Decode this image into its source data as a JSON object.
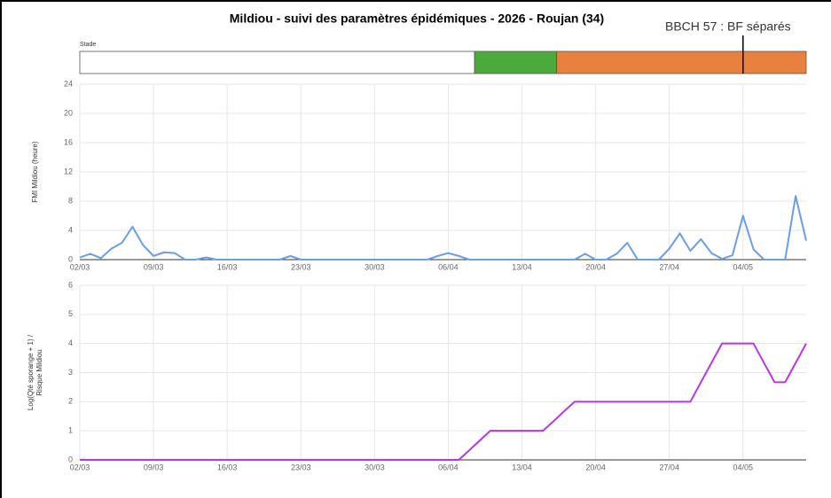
{
  "chart_data": [
    {
      "type": "stage",
      "title": "Mildiou - suivi des paramètres épidémiques - 2026 - Roujan (34)",
      "label": "Stade",
      "xlim": [
        0,
        69
      ],
      "values": [
        37.5,
        7.8,
        23.7
      ],
      "colors": [
        "#ffffff",
        "#4caa3c",
        "#e8803e"
      ],
      "marker": 63,
      "annotation": "BBCH 57 : BF séparés"
    },
    {
      "type": "line",
      "ylabel": "FMI Mildiou (heure)",
      "categories": [
        "02/03",
        null,
        null,
        null,
        null,
        null,
        null,
        "09/03",
        null,
        null,
        null,
        null,
        null,
        null,
        "16/03",
        null,
        null,
        null,
        null,
        null,
        null,
        "23/03",
        null,
        null,
        null,
        null,
        null,
        null,
        "30/03",
        null,
        null,
        null,
        null,
        null,
        null,
        "06/04",
        null,
        null,
        null,
        null,
        null,
        null,
        "13/04",
        null,
        null,
        null,
        null,
        null,
        null,
        "20/04",
        null,
        null,
        null,
        null,
        null,
        null,
        "27/04",
        null,
        null,
        null,
        null,
        null,
        null,
        "04/05",
        null,
        null,
        null,
        null,
        null,
        null
      ],
      "series": [
        {
          "color": "#6a9ee8",
          "values": [
            0.3,
            0.8,
            0.2,
            1.5,
            2.3,
            4.5,
            2,
            0.5,
            1,
            0.9,
            0,
            0,
            0.3,
            0,
            0,
            0,
            0,
            0,
            0,
            0,
            0.5,
            0,
            0,
            0,
            0,
            0,
            0,
            0,
            0,
            0,
            0,
            0,
            0,
            0,
            0.5,
            0.9,
            0.5,
            0,
            0,
            0,
            0,
            0,
            0,
            0,
            0,
            0,
            0,
            0,
            0.8,
            0,
            0,
            0.8,
            2.3,
            0,
            0,
            0,
            1.5,
            3.6,
            1.2,
            2.8,
            0.9,
            0.1,
            0.6,
            6,
            1.4,
            0,
            0,
            0,
            8.7,
            2.6
          ]
        }
      ],
      "ylim": [
        0,
        24
      ],
      "yticks": [
        0,
        4,
        8,
        12,
        16,
        20,
        24
      ],
      "grid": true
    },
    {
      "type": "line",
      "ylabel": [
        "Log(Qté sporange + 1) /",
        "Risque Mildiou"
      ],
      "categories": [
        "02/03",
        null,
        null,
        null,
        null,
        null,
        null,
        "09/03",
        null,
        null,
        null,
        null,
        null,
        null,
        "16/03",
        null,
        null,
        null,
        null,
        null,
        null,
        "23/03",
        null,
        null,
        null,
        null,
        null,
        null,
        "30/03",
        null,
        null,
        null,
        null,
        null,
        null,
        "06/04",
        null,
        null,
        null,
        null,
        null,
        null,
        "13/04",
        null,
        null,
        null,
        null,
        null,
        null,
        "20/04",
        null,
        null,
        null,
        null,
        null,
        null,
        "27/04",
        null,
        null,
        null,
        null,
        null,
        null,
        "04/05",
        null,
        null,
        null,
        null,
        null,
        null
      ],
      "series": [
        {
          "color": "#b936e6",
          "values": [
            0,
            0,
            0,
            0,
            0,
            0,
            0,
            0,
            0,
            0,
            0,
            0,
            0,
            0,
            0,
            0,
            0,
            0,
            0,
            0,
            0,
            0,
            0,
            0,
            0,
            0,
            0,
            0,
            0,
            0,
            0,
            0,
            0,
            0,
            0,
            0,
            0,
            0.33,
            0.67,
            1,
            1,
            1,
            1,
            1,
            1,
            1.33,
            1.67,
            2,
            2,
            2,
            2,
            2,
            2,
            2,
            2,
            2,
            2,
            2,
            2,
            2.67,
            3.33,
            4,
            4,
            4,
            4,
            3.33,
            2.67,
            2.67,
            3.33,
            4
          ]
        }
      ],
      "ylim": [
        0,
        6
      ],
      "yticks": [
        0,
        1,
        2,
        3,
        4,
        5,
        6
      ],
      "grid": true
    }
  ]
}
